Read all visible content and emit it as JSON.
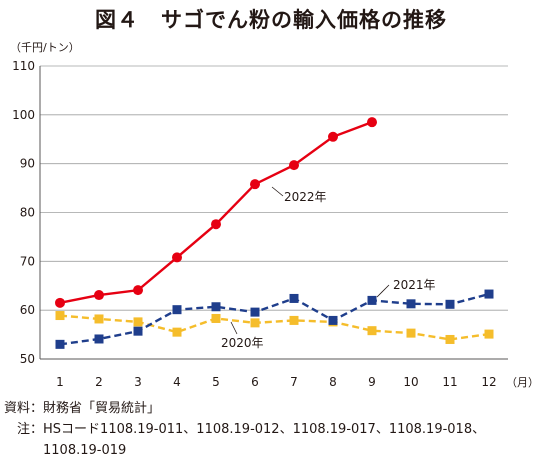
{
  "header": {
    "title": "図４　サゴでん粉の輸入価格の推移"
  },
  "chart_data": {
    "type": "line",
    "title": "図４　サゴでん粉の輸入価格の推移",
    "ylabel": "（千円/トン）",
    "xlabel": "（月）",
    "categories": [
      "1",
      "2",
      "3",
      "4",
      "5",
      "6",
      "7",
      "8",
      "9",
      "10",
      "11",
      "12"
    ],
    "ylim": [
      50,
      110
    ],
    "yticks": [
      50,
      60,
      70,
      80,
      90,
      100,
      110
    ],
    "grid": true,
    "legend": "inline annotations",
    "series": [
      {
        "name": "2022年",
        "color": "#e60012",
        "marker": "circle",
        "dash": "solid",
        "values": [
          61.5,
          63.1,
          64.1,
          70.8,
          77.6,
          85.8,
          89.7,
          95.5,
          98.5,
          null,
          null,
          null
        ]
      },
      {
        "name": "2021年",
        "color": "#1f3e8c",
        "marker": "square",
        "dash": "dashed",
        "values": [
          53.0,
          54.1,
          55.7,
          60.1,
          60.7,
          59.6,
          62.4,
          57.9,
          62.0,
          61.3,
          61.2,
          63.3
        ]
      },
      {
        "name": "2020年",
        "color": "#f5bd2b",
        "marker": "square",
        "dash": "dashed",
        "values": [
          58.9,
          58.2,
          57.6,
          55.5,
          58.3,
          57.4,
          57.9,
          57.6,
          55.8,
          55.3,
          54.0,
          55.1
        ]
      }
    ]
  },
  "footer": {
    "source_key": "資料：",
    "source_text": "財務省「貿易統計」",
    "note_key": "　注：",
    "note_text": "HSコード1108.19-011、1108.19-012、1108.19-017、1108.19-018、1108.19-019"
  }
}
